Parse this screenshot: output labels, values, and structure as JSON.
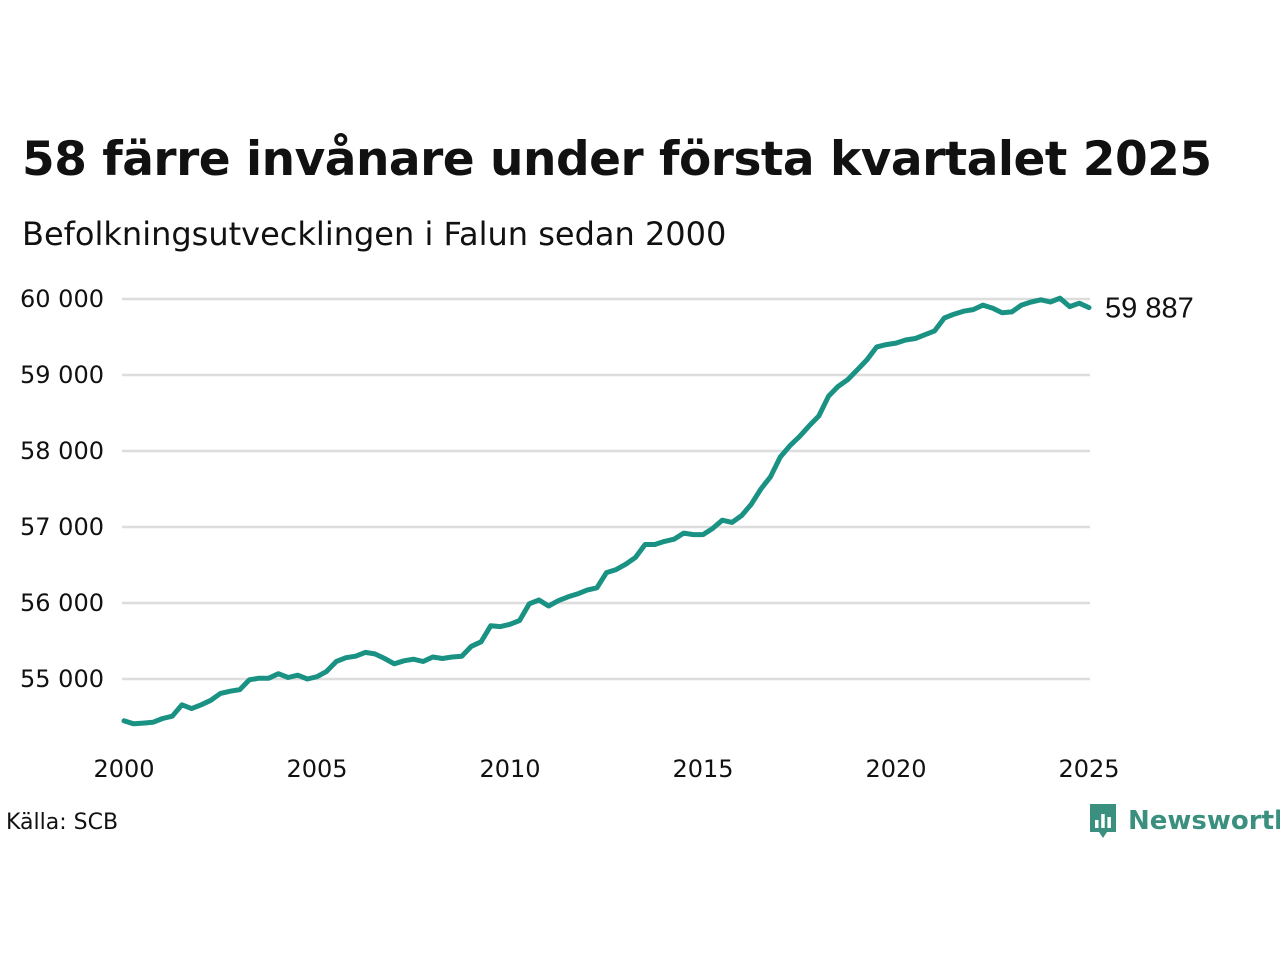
{
  "title": "58 färre invånare under första kvartalet 2025",
  "subtitle": "Befolkningsutvecklingen i Falun sedan 2000",
  "source": "Källa: SCB",
  "brand": {
    "name": "Newsworthy",
    "logo_icon": "newsworthy-chart-bubble-icon",
    "color": "#3a8f7f"
  },
  "chart_data": {
    "type": "line",
    "title": "58 färre invånare under första kvartalet 2025",
    "subtitle": "Befolkningsutvecklingen i Falun sedan 2000",
    "xlabel": "",
    "ylabel": "",
    "xlim": [
      2000,
      2025.25
    ],
    "ylim": [
      54200,
      60100
    ],
    "grid": true,
    "line_color": "#1a9283",
    "grid_color": "#dddddd",
    "x_ticks": [
      2000,
      2005,
      2010,
      2015,
      2020,
      2025
    ],
    "x_tick_labels": [
      "2000",
      "2005",
      "2010",
      "2015",
      "2020",
      "2025"
    ],
    "y_ticks": [
      55000,
      56000,
      57000,
      58000,
      59000,
      60000
    ],
    "y_tick_labels": [
      "55 000",
      "56 000",
      "57 000",
      "58 000",
      "59 000",
      "60 000"
    ],
    "end_label": "59 887",
    "series": [
      {
        "x": [
          2000.0,
          2000.25,
          2000.5,
          2000.75,
          2001.0,
          2001.25,
          2001.5,
          2001.75,
          2002.0,
          2002.25,
          2002.5,
          2002.75,
          2003.0,
          2003.25,
          2003.5,
          2003.75,
          2004.0,
          2004.25,
          2004.5,
          2004.75,
          2005.0,
          2005.25,
          2005.5,
          2005.75,
          2006.0,
          2006.25,
          2006.5,
          2006.75,
          2007.0,
          2007.25,
          2007.5,
          2007.75,
          2008.0,
          2008.25,
          2008.5,
          2008.75,
          2009.0,
          2009.25,
          2009.5,
          2009.75,
          2010.0,
          2010.25,
          2010.5,
          2010.75,
          2011.0,
          2011.25,
          2011.5,
          2011.75,
          2012.0,
          2012.25,
          2012.5,
          2012.75,
          2013.0,
          2013.25,
          2013.5,
          2013.75,
          2014.0,
          2014.25,
          2014.5,
          2014.75,
          2015.0,
          2015.25,
          2015.5,
          2015.75,
          2016.0,
          2016.25,
          2016.5,
          2016.75,
          2017.0,
          2017.25,
          2017.5,
          2017.75,
          2018.0,
          2018.25,
          2018.5,
          2018.75,
          2019.0,
          2019.25,
          2019.5,
          2019.75,
          2020.0,
          2020.25,
          2020.5,
          2020.75,
          2021.0,
          2021.25,
          2021.5,
          2021.75,
          2022.0,
          2022.25,
          2022.5,
          2022.75,
          2023.0,
          2023.25,
          2023.5,
          2023.75,
          2024.0,
          2024.25,
          2024.5,
          2024.75,
          2025.0
        ],
        "values": [
          54450,
          54410,
          54420,
          54430,
          54480,
          54510,
          54660,
          54610,
          54660,
          54720,
          54810,
          54840,
          54860,
          54990,
          55010,
          55010,
          55070,
          55020,
          55050,
          55000,
          55030,
          55100,
          55230,
          55280,
          55300,
          55350,
          55330,
          55270,
          55200,
          55240,
          55260,
          55230,
          55290,
          55270,
          55290,
          55300,
          55430,
          55490,
          55700,
          55690,
          55720,
          55770,
          55990,
          56040,
          55960,
          56030,
          56080,
          56120,
          56170,
          56200,
          56400,
          56440,
          56510,
          56600,
          56770,
          56770,
          56810,
          56840,
          56920,
          56900,
          56900,
          56980,
          57090,
          57060,
          57150,
          57300,
          57500,
          57660,
          57920,
          58070,
          58190,
          58330,
          58460,
          58720,
          58850,
          58940,
          59070,
          59200,
          59370,
          59400,
          59420,
          59460,
          59480,
          59530,
          59580,
          59750,
          59800,
          59840,
          59860,
          59920,
          59880,
          59820,
          59830,
          59920,
          59960,
          59990,
          59960,
          60010,
          59900,
          59945,
          59887
        ]
      }
    ]
  }
}
